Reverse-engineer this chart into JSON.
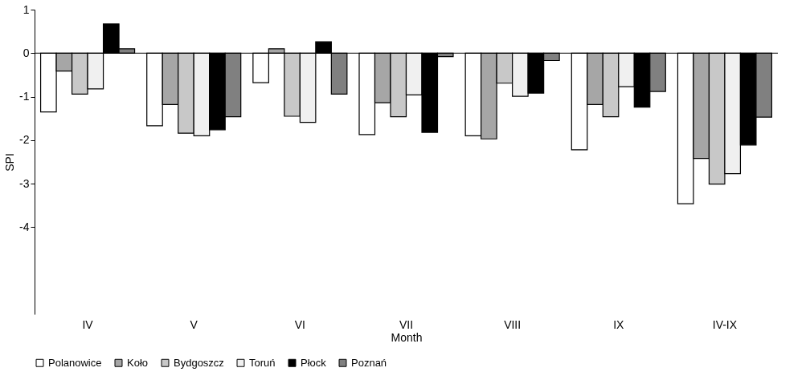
{
  "chart_data": {
    "type": "bar",
    "xlabel": "Month",
    "ylabel": "SPI",
    "categories": [
      "IV",
      "V",
      "VI",
      "VII",
      "VIII",
      "IX",
      "IV-IX"
    ],
    "series": [
      {
        "name": "Polanowice",
        "color": "#ffffff",
        "values": [
          -1.35,
          -1.67,
          -0.68,
          -1.87,
          -1.9,
          -2.22,
          -3.46
        ]
      },
      {
        "name": "Koło",
        "color": "#a6a6a6",
        "values": [
          -0.41,
          -1.18,
          0.1,
          -1.14,
          -1.97,
          -1.18,
          -2.42
        ]
      },
      {
        "name": "Bydgoszcz",
        "color": "#c8c8c8",
        "values": [
          -0.94,
          -1.84,
          -1.45,
          -1.46,
          -0.69,
          -1.46,
          -3.01
        ]
      },
      {
        "name": "Toruń",
        "color": "#f0f0f0",
        "values": [
          -0.82,
          -1.9,
          -1.59,
          -0.96,
          -0.99,
          -0.77,
          -2.77
        ]
      },
      {
        "name": "Płock",
        "color": "#000000",
        "values": [
          0.67,
          -1.76,
          0.26,
          -1.82,
          -0.92,
          -1.24,
          -2.11
        ]
      },
      {
        "name": "Poznań",
        "color": "#808080",
        "values": [
          0.1,
          -1.46,
          -0.94,
          -0.08,
          -0.17,
          -0.88,
          -1.47
        ]
      }
    ],
    "ylim": [
      -6,
      1
    ],
    "yticks": [
      -4,
      -3,
      -2,
      -1,
      0,
      1
    ],
    "grid": false,
    "ref_lines": [
      {
        "axis": "y",
        "value": 0,
        "color": "#000000"
      }
    ],
    "legend": "bottom"
  }
}
